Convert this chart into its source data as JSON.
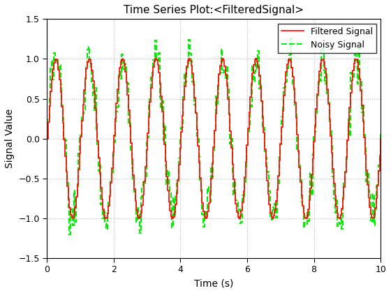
{
  "title": "Time Series Plot:<FilteredSignal>",
  "xlabel": "Time (s)",
  "ylabel": "Signal Value",
  "xlim": [
    0,
    10
  ],
  "ylim": [
    -1.5,
    1.5
  ],
  "yticks": [
    -1.5,
    -1.0,
    -0.5,
    0.0,
    0.5,
    1.0,
    1.5
  ],
  "xticks": [
    0,
    2,
    4,
    6,
    8,
    10
  ],
  "filtered_color": "#ff0000",
  "noisy_color": "#00ee00",
  "filtered_label": "Filtered Signal",
  "noisy_label": "Noisy Signal",
  "filtered_linewidth": 1.2,
  "noisy_linewidth": 1.5,
  "n_points": 300,
  "frequency": 1.0,
  "noise_amplitude": 0.13,
  "background_color": "#ffffff",
  "grid_color": "#bbbbbb",
  "title_fontsize": 11,
  "label_fontsize": 10,
  "legend_fontsize": 9,
  "figwidth": 5.6,
  "figheight": 4.2,
  "dpi": 100
}
